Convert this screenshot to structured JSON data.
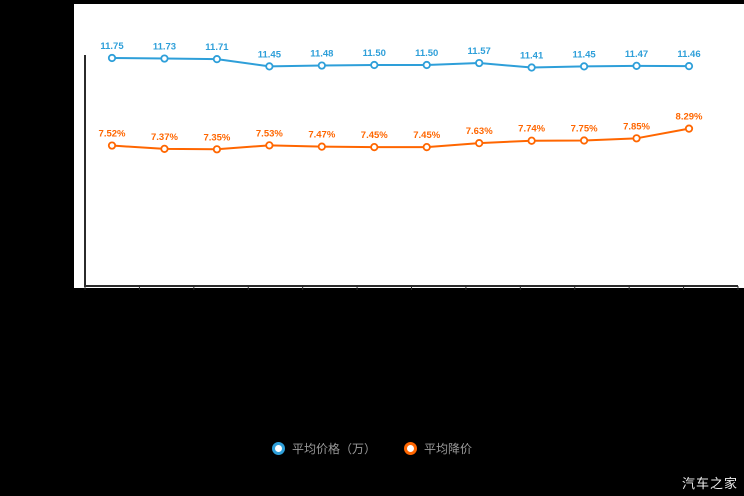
{
  "watermark": "汽车之家",
  "colors": {
    "blue": "#2e9fd9",
    "orange": "#ff6600",
    "axis": "#2b2b2b",
    "panel_bg": "#ffffff",
    "page_bg": "#000000",
    "legend_text": "#9a9a9a"
  },
  "legend": {
    "items": [
      {
        "label": "平均价格（万）",
        "color": "#2e9fd9"
      },
      {
        "label": "平均降价",
        "color": "#ff6600"
      }
    ]
  },
  "chart_data": {
    "type": "line",
    "grid": false,
    "legend_position": "bottom",
    "series": [
      {
        "name": "平均价格（万）",
        "color": "#2e9fd9",
        "unit": "万",
        "values": [
          11.75,
          11.73,
          11.71,
          11.45,
          11.48,
          11.5,
          11.5,
          11.57,
          11.41,
          11.45,
          11.47,
          11.46
        ],
        "labels": [
          "11.75",
          "11.73",
          "11.71",
          "11.45",
          "11.48",
          "11.50",
          "11.50",
          "11.57",
          "11.41",
          "11.45",
          "11.47",
          "11.46"
        ]
      },
      {
        "name": "平均降价",
        "color": "#ff6600",
        "unit": "%",
        "values": [
          7.52,
          7.37,
          7.35,
          7.53,
          7.47,
          7.45,
          7.45,
          7.63,
          7.74,
          7.75,
          7.85,
          8.29
        ],
        "labels": [
          "7.52%",
          "7.37%",
          "7.35%",
          "7.53%",
          "7.47%",
          "7.45%",
          "7.45%",
          "7.63%",
          "7.74%",
          "7.75%",
          "7.85%",
          "8.29%"
        ]
      }
    ]
  }
}
